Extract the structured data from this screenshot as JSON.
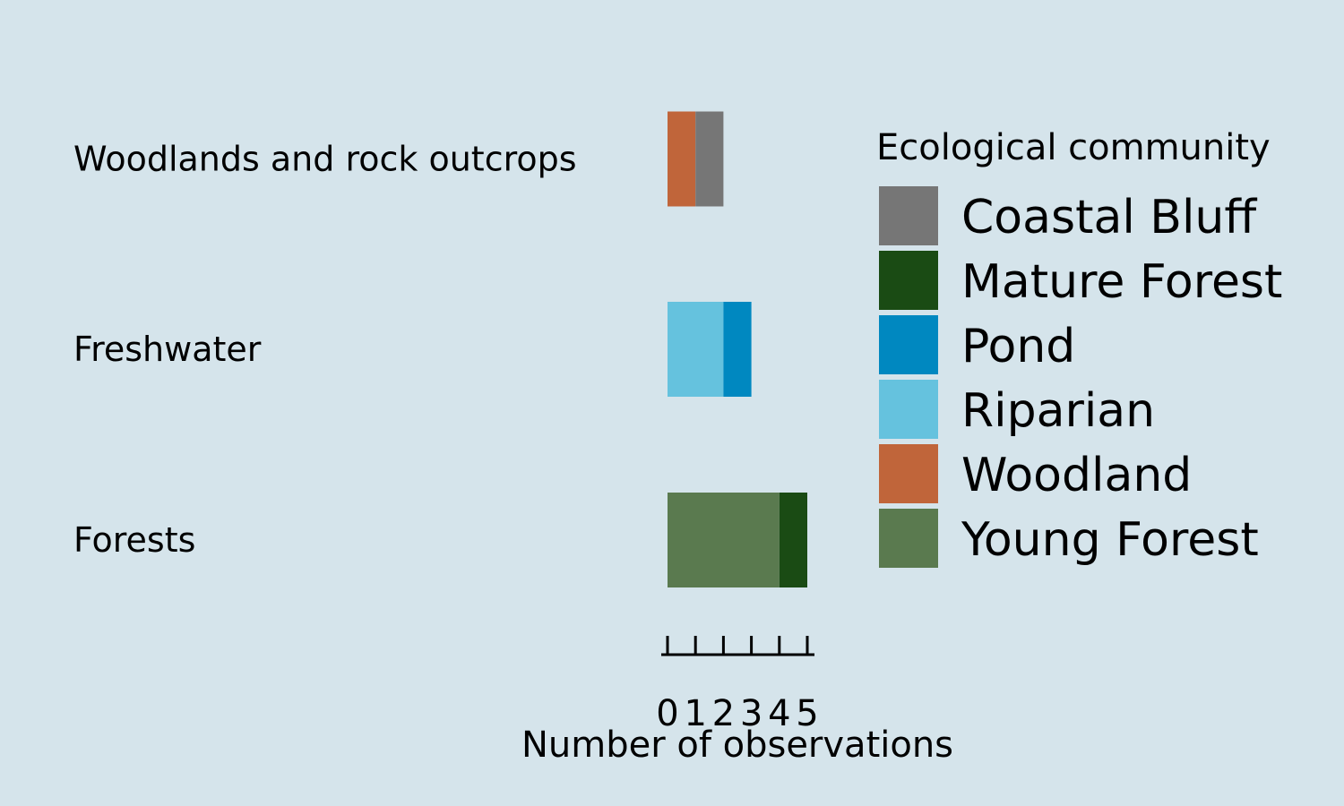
{
  "chart_data": {
    "type": "bar",
    "orientation": "horizontal",
    "stacked": true,
    "categories": [
      "Woodlands and rock outcrops",
      "Freshwater",
      "Forests"
    ],
    "series": [
      {
        "name": "Woodland",
        "color": "#c0653a",
        "values": [
          1,
          0,
          0
        ]
      },
      {
        "name": "Coastal Bluff",
        "color": "#767676",
        "values": [
          1,
          0,
          0
        ]
      },
      {
        "name": "Riparian",
        "color": "#65c2de",
        "values": [
          0,
          2,
          0
        ]
      },
      {
        "name": "Pond",
        "color": "#0088c0",
        "values": [
          0,
          1,
          0
        ]
      },
      {
        "name": "Young Forest",
        "color": "#5a7a4f",
        "values": [
          0,
          0,
          4
        ]
      },
      {
        "name": "Mature Forest",
        "color": "#1a4b14",
        "values": [
          0,
          0,
          1
        ]
      }
    ],
    "xlabel": "Number of observations",
    "xticks": [
      "0",
      "1",
      "2",
      "3",
      "4",
      "5"
    ],
    "xlim": [
      0,
      5
    ],
    "legend": {
      "title": "Ecological community",
      "position": "right",
      "items": [
        {
          "name": "Coastal Bluff",
          "color": "#767676"
        },
        {
          "name": "Mature Forest",
          "color": "#1a4b14"
        },
        {
          "name": "Pond",
          "color": "#0088c0"
        },
        {
          "name": "Riparian",
          "color": "#65c2de"
        },
        {
          "name": "Woodland",
          "color": "#c0653a"
        },
        {
          "name": "Young Forest",
          "color": "#5a7a4f"
        }
      ]
    },
    "background_color": "#d5e4eb",
    "grid": false
  }
}
